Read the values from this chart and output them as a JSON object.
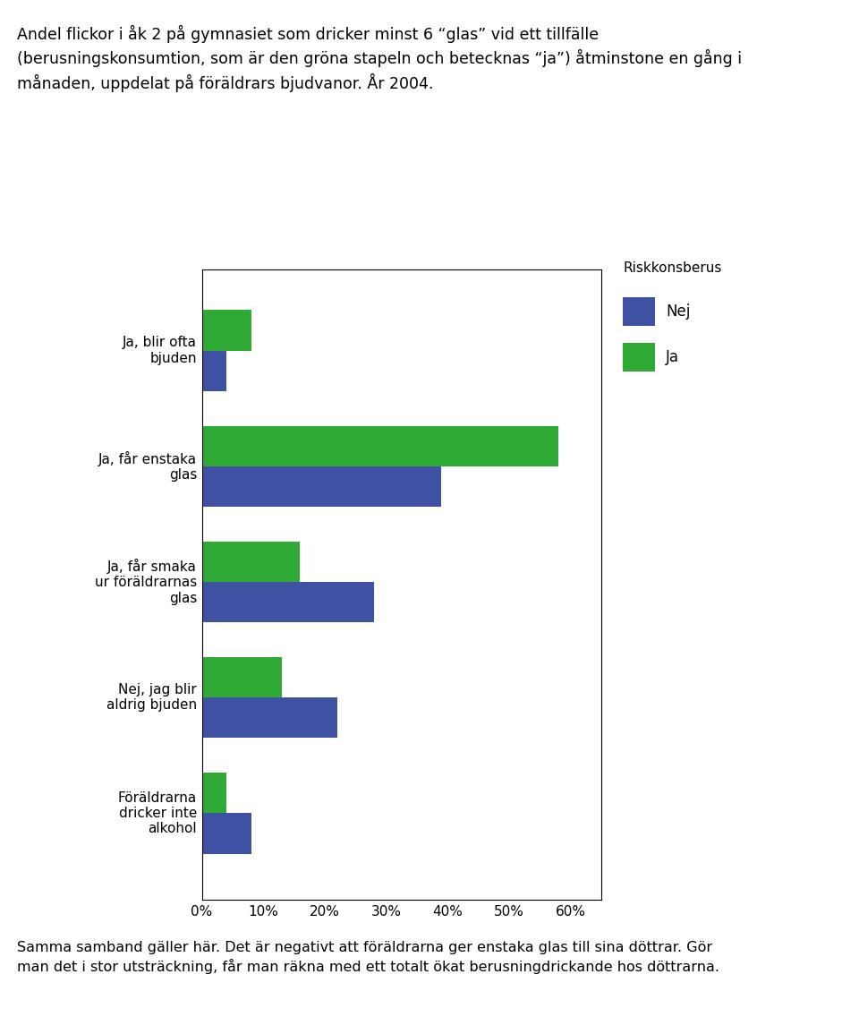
{
  "title_lines": [
    "Andel flickor i åk 2 på gymnasiet som dricker minst 6 “glas” vid ett tillfälle",
    "(berusningskonsumtion, som är den gröna stapeln och betecknas “ja”) åtminstone en gång i",
    "månaden, uppdelat på föräldrars bjudvanor. År 2004."
  ],
  "categories": [
    "Ja, blir ofta\nbjuden",
    "Ja, får enstaka\nglas",
    "Ja, får smaka\nur föräldrarnas\nglas",
    "Nej, jag blir\naldrig bjuden",
    "Föräldrarna\ndricker inte\nalkohol"
  ],
  "ja_values": [
    8,
    58,
    16,
    13,
    4
  ],
  "nej_values": [
    4,
    39,
    28,
    22,
    8
  ],
  "color_ja": "#2eaa35",
  "color_nej": "#3f51a3",
  "legend_title": "Riskkonsberus",
  "legend_nej": "Nej",
  "legend_ja": "Ja",
  "xlim": [
    0,
    65
  ],
  "xticks": [
    0,
    10,
    20,
    30,
    40,
    50,
    60
  ],
  "xticklabels": [
    "0%",
    "10%",
    "20%",
    "30%",
    "40%",
    "50%",
    "60%"
  ],
  "footer_lines": [
    "Samma samband gäller här. Det är negativt att föräldrarna ger enstaka glas till sina döttrar. Gör",
    "man det i stor utsträckning, får man räkna med ett totalt ökat berusningdrickande hos döttrarna."
  ],
  "bar_height": 0.35,
  "background_color": "#ffffff"
}
